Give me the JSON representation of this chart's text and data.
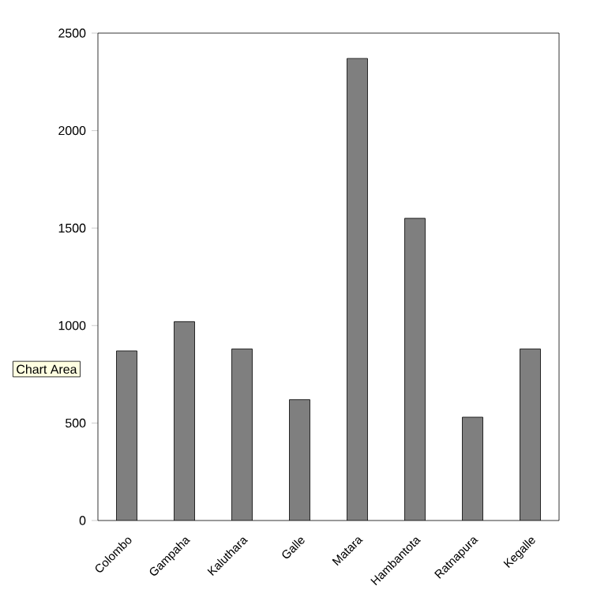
{
  "chart_data": {
    "type": "bar",
    "categories": [
      "Colombo",
      "Gampaha",
      "Kaluthara",
      "Galle",
      "Matara",
      "Hambantota",
      "Ratnapura",
      "Kegalle"
    ],
    "values": [
      870,
      1020,
      880,
      620,
      2370,
      1550,
      530,
      880
    ],
    "color": "#7f7f7f",
    "ylim": [
      0,
      2500
    ],
    "yticks": [
      0,
      500,
      1000,
      1500,
      2000,
      2500
    ],
    "grid": false,
    "annotations": [
      "Chart Area"
    ]
  }
}
